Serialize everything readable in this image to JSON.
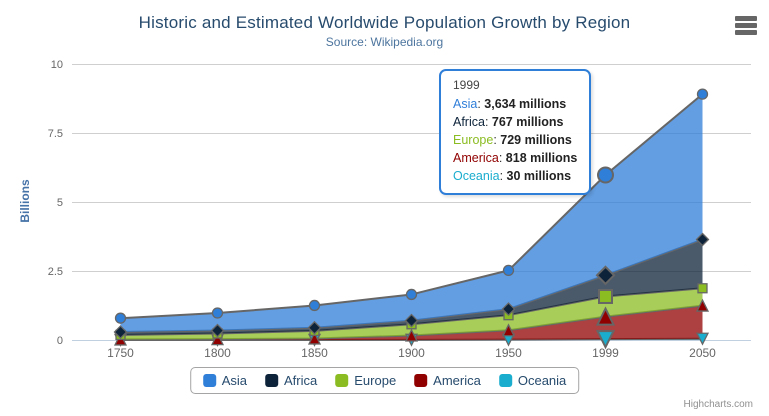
{
  "chart_data": {
    "type": "area",
    "stacking": "normal",
    "title": "Historic and Estimated Worldwide Population Growth by Region",
    "subtitle": "Source: Wikipedia.org",
    "categories": [
      "1750",
      "1800",
      "1850",
      "1900",
      "1950",
      "1999",
      "2050"
    ],
    "xlabel": "",
    "ylabel": "Billions",
    "ylim": [
      0,
      10
    ],
    "yticks": [
      0,
      2.5,
      5,
      7.5,
      10
    ],
    "value_unit": "millions",
    "grid": "horizontal",
    "legend_position": "bottom-center",
    "hovered_category": "1999",
    "series": [
      {
        "name": "Asia",
        "color": "#2f7ed8",
        "marker": "circle",
        "values": [
          502,
          635,
          809,
          947,
          1402,
          3634,
          5268
        ]
      },
      {
        "name": "Africa",
        "color": "#0d233a",
        "marker": "diamond",
        "values": [
          106,
          107,
          111,
          133,
          221,
          767,
          1766
        ]
      },
      {
        "name": "Europe",
        "color": "#8bbc21",
        "marker": "square",
        "values": [
          163,
          203,
          276,
          408,
          547,
          729,
          628
        ]
      },
      {
        "name": "America",
        "color": "#910000",
        "marker": "triangle",
        "values": [
          18,
          31,
          54,
          156,
          339,
          818,
          1201
        ]
      },
      {
        "name": "Oceania",
        "color": "#1aadce",
        "marker": "triangle-down",
        "values": [
          2,
          2,
          2,
          6,
          13,
          30,
          46
        ]
      }
    ]
  },
  "tooltip": {
    "header": "1999",
    "rows": [
      {
        "name": "Asia",
        "color": "#2f7ed8",
        "value": "3,634 millions"
      },
      {
        "name": "Africa",
        "color": "#0d233a",
        "value": "767 millions"
      },
      {
        "name": "Europe",
        "color": "#8bbc21",
        "value": "729 millions"
      },
      {
        "name": "America",
        "color": "#910000",
        "value": "818 millions"
      },
      {
        "name": "Oceania",
        "color": "#1aadce",
        "value": "30 millions"
      }
    ]
  },
  "credits": "Highcharts.com",
  "colors": {
    "title_text": "#274b6d",
    "subtitle_text": "#4d759e",
    "axis_label": "#666666",
    "y_axis_title": "#4572a7",
    "legend_text": "#274b6d",
    "series_line": "#666666",
    "gridline": "#cfcfcf",
    "axis_line": "#c0d0e0",
    "tooltip_border": "#2f7ed8",
    "export_icon": "#666666"
  }
}
